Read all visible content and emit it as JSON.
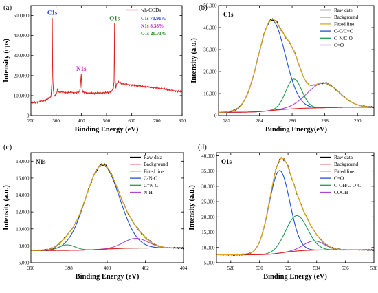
{
  "chart_data": [
    {
      "type": "line",
      "panel": "(a)",
      "xlabel": "Binding Energy (eV)",
      "ylabel": "Intensity (cps)",
      "xlim": [
        200,
        800
      ],
      "ylim": [
        0,
        550000
      ],
      "xticks": [
        200,
        300,
        400,
        500,
        600,
        700,
        800
      ],
      "yticks": [
        0,
        100000,
        200000,
        300000,
        400000,
        500000
      ],
      "ytick_labels": [
        "0",
        "100,000",
        "200,000",
        "300,000",
        "400,000",
        "500,000"
      ],
      "legend": [
        "wh-CQDs"
      ],
      "composition": [
        "C1s 70.91%",
        "N1s 8.38%",
        "O1s 20.71%"
      ],
      "peak_labels": [
        {
          "text": "C1s",
          "x": 284.8,
          "y": 490000,
          "color": "#2b3fd6"
        },
        {
          "text": "N1s",
          "x": 399.8,
          "y": 210000,
          "color": "#c81ac8"
        },
        {
          "text": "O1s",
          "x": 532,
          "y": 462000,
          "color": "#1f8a1f"
        }
      ],
      "series": [
        {
          "name": "wh-CQDs",
          "color": "#e02020",
          "points": [
            [
              200,
              62000
            ],
            [
              230,
              68000
            ],
            [
              260,
              78000
            ],
            [
              276,
              90000
            ],
            [
              280,
              100000
            ],
            [
              283,
              160000
            ],
            [
              284.8,
              490000
            ],
            [
              286.5,
              190000
            ],
            [
              289,
              130000
            ],
            [
              292,
              98000
            ],
            [
              296,
              100000
            ],
            [
              300,
              108000
            ],
            [
              304,
              118000
            ],
            [
              306,
              140000
            ],
            [
              308,
              118000
            ],
            [
              320,
              118000
            ],
            [
              340,
              115000
            ],
            [
              360,
              116000
            ],
            [
              380,
              114000
            ],
            [
              392,
              118000
            ],
            [
              396,
              140000
            ],
            [
              399.8,
              210000
            ],
            [
              402,
              140000
            ],
            [
              406,
              118000
            ],
            [
              430,
              112000
            ],
            [
              460,
              112000
            ],
            [
              490,
              114000
            ],
            [
              510,
              116000
            ],
            [
              520,
              122000
            ],
            [
              527,
              135000
            ],
            [
              530,
              170000
            ],
            [
              532,
              462000
            ],
            [
              534,
              175000
            ],
            [
              537,
              140000
            ],
            [
              541,
              160000
            ],
            [
              546,
              168000
            ],
            [
              560,
              160000
            ],
            [
              600,
              152000
            ],
            [
              650,
              145000
            ],
            [
              700,
              138000
            ],
            [
              750,
              128000
            ],
            [
              800,
              118000
            ]
          ]
        }
      ]
    },
    {
      "type": "line",
      "panel": "(b)",
      "title_label": "C1s",
      "xlabel": "Binding Energy(eV)",
      "ylabel": "Intensity (a.u.)",
      "xlim": [
        281.5,
        291
      ],
      "ylim": [
        0,
        50000
      ],
      "xticks": [
        282,
        284,
        286,
        288,
        290
      ],
      "yticks": [
        0,
        10000,
        20000,
        30000,
        40000,
        50000
      ],
      "ytick_labels": [
        "0",
        "10,000",
        "20,000",
        "30,000",
        "40,000",
        "50,000"
      ],
      "legend": [
        "Raw date",
        "Background",
        "Fitted line",
        "C-C/C=C",
        "C-N/C-O",
        "C=O"
      ],
      "colors": [
        "#000000",
        "#e02020",
        "#e0a81c",
        "#1f4fd6",
        "#1f9a4f",
        "#b044d8"
      ],
      "background": {
        "left": 1500,
        "right": 3800
      },
      "peaks": [
        {
          "name": "C-C/C=C",
          "center": 284.75,
          "height": 41000,
          "fwhm": 1.95
        },
        {
          "name": "C-N/C-O",
          "center": 286.1,
          "height": 13500,
          "fwhm": 1.15
        },
        {
          "name": "C=O",
          "center": 287.9,
          "height": 11200,
          "fwhm": 2.3
        }
      ]
    },
    {
      "type": "line",
      "panel": "(c)",
      "title_label": "N1s",
      "xlabel": "Binding Energy (eV)",
      "ylabel": "Intensity (a.u.)",
      "xlim": [
        396,
        404
      ],
      "ylim": [
        6000,
        19000
      ],
      "xticks": [
        396,
        398,
        400,
        402,
        404
      ],
      "yticks": [
        6000,
        8000,
        10000,
        12000,
        14000,
        16000,
        18000
      ],
      "ytick_labels": [
        "6,000",
        "8,000",
        "10,000",
        "12,000",
        "14,000",
        "16,000",
        "18,000"
      ],
      "legend": [
        "Raw data",
        "Background",
        "Fitted line",
        "C-N-C",
        "C=N-C",
        "N-H"
      ],
      "colors": [
        "#000000",
        "#e02020",
        "#e0a81c",
        "#1f4fd6",
        "#1f9a4f",
        "#b044d8"
      ],
      "background": {
        "left": 7450,
        "right": 7750
      },
      "peaks": [
        {
          "name": "C-N-C",
          "center": 399.75,
          "height": 9950,
          "fwhm": 2.1
        },
        {
          "name": "C=N-C",
          "center": 397.9,
          "height": 650,
          "fwhm": 1.0
        },
        {
          "name": "N-H",
          "center": 401.5,
          "height": 1150,
          "fwhm": 1.5
        }
      ]
    },
    {
      "type": "line",
      "panel": "(d)",
      "title_label": "O1s",
      "xlabel": "Binding Energy (eV)",
      "ylabel": "Intensity (a.u.)",
      "xlim": [
        527,
        538
      ],
      "ylim": [
        5000,
        41000
      ],
      "xticks": [
        528,
        530,
        532,
        534,
        536,
        538
      ],
      "yticks": [
        5000,
        10000,
        15000,
        20000,
        25000,
        30000,
        35000,
        40000
      ],
      "ytick_labels": [
        "5,000",
        "10,000",
        "15,000",
        "20,000",
        "25,000",
        "30,000",
        "35,000",
        "40,000"
      ],
      "legend": [
        "Raw data",
        "Background",
        "Fitted line",
        "C=O",
        "C-OH/C-O-C",
        "COOH"
      ],
      "colors": [
        "#000000",
        "#e02020",
        "#e0a81c",
        "#1f4fd6",
        "#1f9a4f",
        "#b044d8"
      ],
      "background": {
        "left": 7600,
        "right": 9200
      },
      "peaks": [
        {
          "name": "C=O",
          "center": 531.4,
          "height": 27000,
          "fwhm": 1.7
        },
        {
          "name": "C-OH/C-O-C",
          "center": 532.6,
          "height": 11600,
          "fwhm": 1.8
        },
        {
          "name": "COOH",
          "center": 533.8,
          "height": 3000,
          "fwhm": 1.7
        }
      ]
    }
  ]
}
